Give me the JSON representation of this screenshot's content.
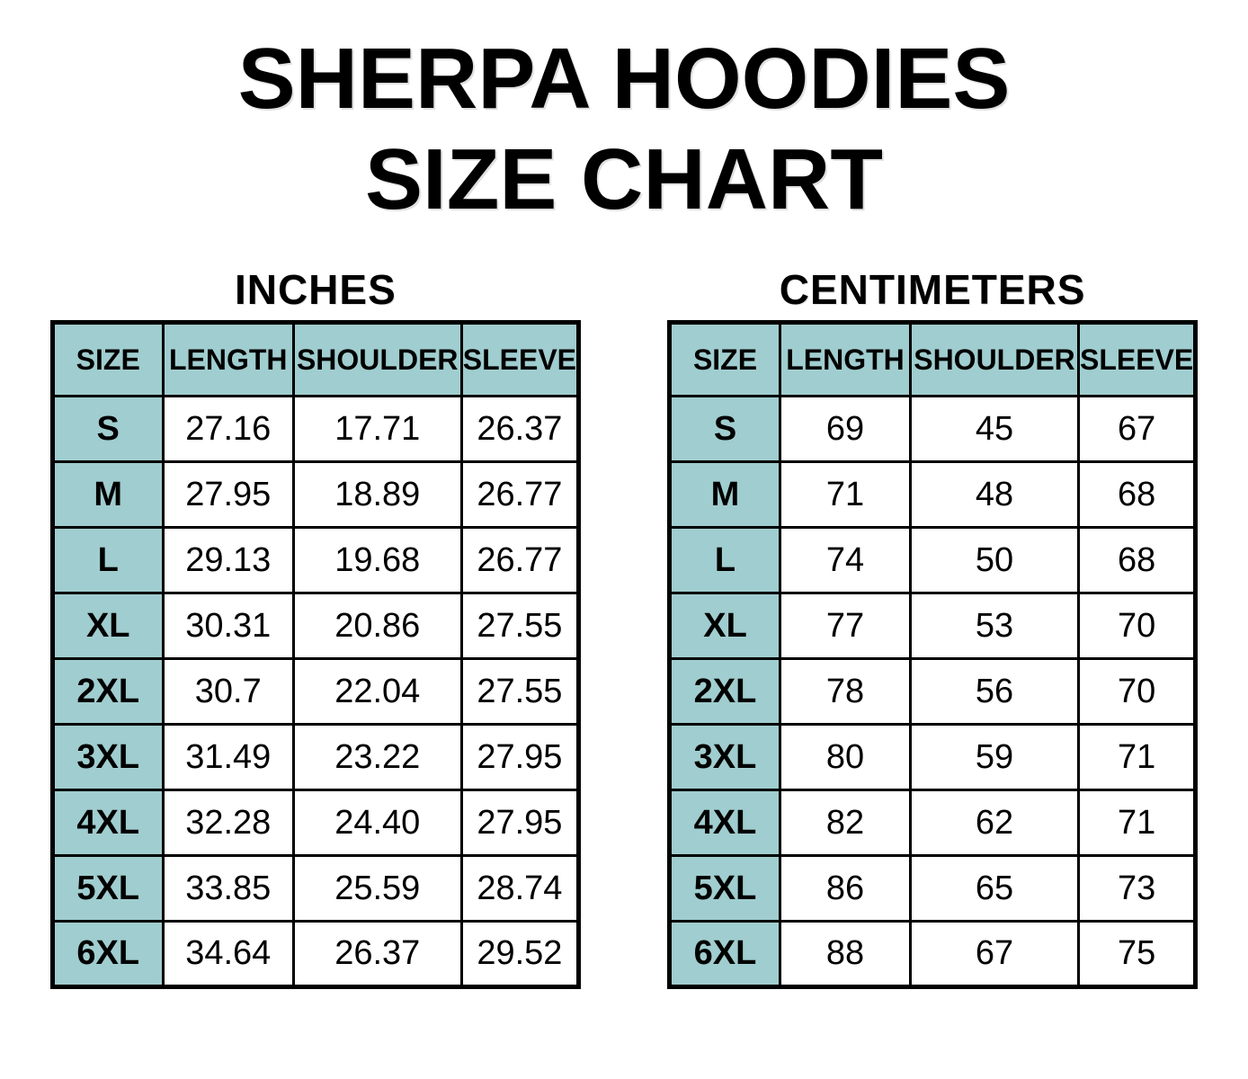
{
  "title": {
    "line1": "SHERPA HOODIES",
    "line2": "SIZE CHART"
  },
  "colors": {
    "header_fill": "#a0cdcf",
    "border": "#000000",
    "text": "#000000",
    "background": "#ffffff"
  },
  "tables": [
    {
      "unit_label": "INCHES",
      "headers": [
        "SIZE",
        "LENGTH",
        "SHOULDER",
        "SLEEVE"
      ],
      "rows": [
        {
          "size": "S",
          "length": "27.16",
          "shoulder": "17.71",
          "sleeve": "26.37"
        },
        {
          "size": "M",
          "length": "27.95",
          "shoulder": "18.89",
          "sleeve": "26.77"
        },
        {
          "size": "L",
          "length": "29.13",
          "shoulder": "19.68",
          "sleeve": "26.77"
        },
        {
          "size": "XL",
          "length": "30.31",
          "shoulder": "20.86",
          "sleeve": "27.55"
        },
        {
          "size": "2XL",
          "length": "30.7",
          "shoulder": "22.04",
          "sleeve": "27.55"
        },
        {
          "size": "3XL",
          "length": "31.49",
          "shoulder": "23.22",
          "sleeve": "27.95"
        },
        {
          "size": "4XL",
          "length": "32.28",
          "shoulder": "24.40",
          "sleeve": "27.95"
        },
        {
          "size": "5XL",
          "length": "33.85",
          "shoulder": "25.59",
          "sleeve": "28.74"
        },
        {
          "size": "6XL",
          "length": "34.64",
          "shoulder": "26.37",
          "sleeve": "29.52"
        }
      ]
    },
    {
      "unit_label": "CENTIMETERS",
      "headers": [
        "SIZE",
        "LENGTH",
        "SHOULDER",
        "SLEEVE"
      ],
      "rows": [
        {
          "size": "S",
          "length": "69",
          "shoulder": "45",
          "sleeve": "67"
        },
        {
          "size": "M",
          "length": "71",
          "shoulder": "48",
          "sleeve": "68"
        },
        {
          "size": "L",
          "length": "74",
          "shoulder": "50",
          "sleeve": "68"
        },
        {
          "size": "XL",
          "length": "77",
          "shoulder": "53",
          "sleeve": "70"
        },
        {
          "size": "2XL",
          "length": "78",
          "shoulder": "56",
          "sleeve": "70"
        },
        {
          "size": "3XL",
          "length": "80",
          "shoulder": "59",
          "sleeve": "71"
        },
        {
          "size": "4XL",
          "length": "82",
          "shoulder": "62",
          "sleeve": "71"
        },
        {
          "size": "5XL",
          "length": "86",
          "shoulder": "65",
          "sleeve": "73"
        },
        {
          "size": "6XL",
          "length": "88",
          "shoulder": "67",
          "sleeve": "75"
        }
      ]
    }
  ],
  "chart_data": [
    {
      "type": "table",
      "title": "Sherpa Hoodies Size Chart — Inches",
      "unit": "inches",
      "columns": [
        "SIZE",
        "LENGTH",
        "SHOULDER",
        "SLEEVE"
      ],
      "rows": [
        [
          "S",
          27.16,
          17.71,
          26.37
        ],
        [
          "M",
          27.95,
          18.89,
          26.77
        ],
        [
          "L",
          29.13,
          19.68,
          26.77
        ],
        [
          "XL",
          30.31,
          20.86,
          27.55
        ],
        [
          "2XL",
          30.7,
          22.04,
          27.55
        ],
        [
          "3XL",
          31.49,
          23.22,
          27.95
        ],
        [
          "4XL",
          32.28,
          24.4,
          27.95
        ],
        [
          "5XL",
          33.85,
          25.59,
          28.74
        ],
        [
          "6XL",
          34.64,
          26.37,
          29.52
        ]
      ]
    },
    {
      "type": "table",
      "title": "Sherpa Hoodies Size Chart — Centimeters",
      "unit": "centimeters",
      "columns": [
        "SIZE",
        "LENGTH",
        "SHOULDER",
        "SLEEVE"
      ],
      "rows": [
        [
          "S",
          69,
          45,
          67
        ],
        [
          "M",
          71,
          48,
          68
        ],
        [
          "L",
          74,
          50,
          68
        ],
        [
          "XL",
          77,
          53,
          70
        ],
        [
          "2XL",
          78,
          56,
          70
        ],
        [
          "3XL",
          80,
          59,
          71
        ],
        [
          "4XL",
          82,
          62,
          71
        ],
        [
          "5XL",
          86,
          65,
          73
        ],
        [
          "6XL",
          88,
          67,
          75
        ]
      ]
    }
  ]
}
